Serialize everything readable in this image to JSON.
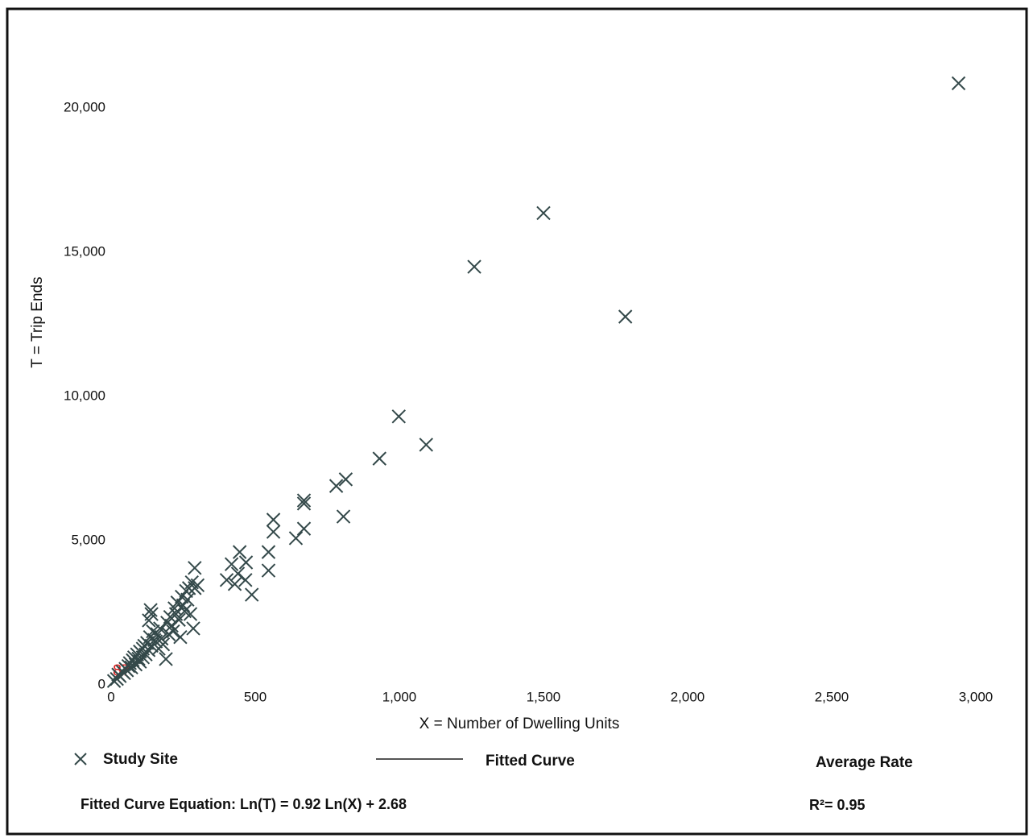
{
  "chart_data": {
    "type": "scatter",
    "x_label": "X = Number of Dwelling Units",
    "y_label": "T = Trip Ends",
    "xlim": [
      0,
      3000
    ],
    "ylim": [
      0,
      20000
    ],
    "xticks": [
      0,
      500,
      {
        "value": 1000,
        "label": "1,000"
      },
      {
        "value": 1500,
        "label": "1,500"
      },
      {
        "value": 2000,
        "label": "2,000"
      },
      {
        "value": 2500,
        "label": "2,500"
      },
      {
        "value": 3000,
        "label": "3,000"
      }
    ],
    "yticks": [
      0,
      {
        "value": 5000,
        "label": "5,000"
      },
      {
        "value": 10000,
        "label": "10,000"
      },
      {
        "value": 15000,
        "label": "15,000"
      },
      {
        "value": 20000,
        "label": "20,000"
      }
    ],
    "x": [
      2940,
      1500,
      1260,
      1784,
      998,
      1093,
      931,
      814,
      781,
      806,
      669,
      669,
      669,
      641,
      563,
      563,
      546,
      546,
      446,
      468,
      488,
      466,
      418,
      401,
      429,
      440,
      290,
      290,
      285,
      137,
      131,
      190,
      10,
      20,
      25,
      30,
      40,
      45,
      50,
      55,
      60,
      65,
      70,
      75,
      80,
      85,
      90,
      95,
      100,
      100,
      110,
      110,
      115,
      120,
      125,
      130,
      135,
      140,
      145,
      150,
      155,
      160,
      165,
      170,
      175,
      180,
      195,
      200,
      205,
      210,
      215,
      220,
      225,
      230,
      235,
      240,
      245,
      250,
      255,
      260,
      265,
      270,
      275,
      280,
      300,
      140
    ],
    "series": [
      {
        "name": "Study Site",
        "color": "#34494a",
        "values": [
          20800,
          16300,
          14440,
          12710,
          9250,
          8270,
          7790,
          7070,
          6840,
          5780,
          6340,
          6230,
          5360,
          5030,
          5670,
          5250,
          4550,
          3910,
          4550,
          4190,
          3070,
          3580,
          4130,
          3580,
          3440,
          3800,
          4000,
          3300,
          1900,
          2540,
          2180,
          840,
          80,
          150,
          300,
          250,
          400,
          350,
          500,
          450,
          600,
          700,
          550,
          800,
          900,
          650,
          1000,
          850,
          1100,
          750,
          1200,
          900,
          1300,
          1000,
          1400,
          1150,
          1600,
          1300,
          1800,
          1500,
          1450,
          1700,
          1200,
          1900,
          1550,
          1350,
          2100,
          1700,
          2300,
          2000,
          1800,
          2600,
          2400,
          2800,
          2200,
          1600,
          3000,
          2700,
          2500,
          3200,
          2900,
          3300,
          2400,
          3500,
          3400,
          2400
        ]
      }
    ],
    "legend_items": [
      "Fitted Curve",
      "Average Rate"
    ],
    "equation": "Fitted Curve Equation: Ln(T) = 0.92 Ln(X) + 2.68",
    "r_squared": "R²= 0.95",
    "annotation": "87"
  }
}
